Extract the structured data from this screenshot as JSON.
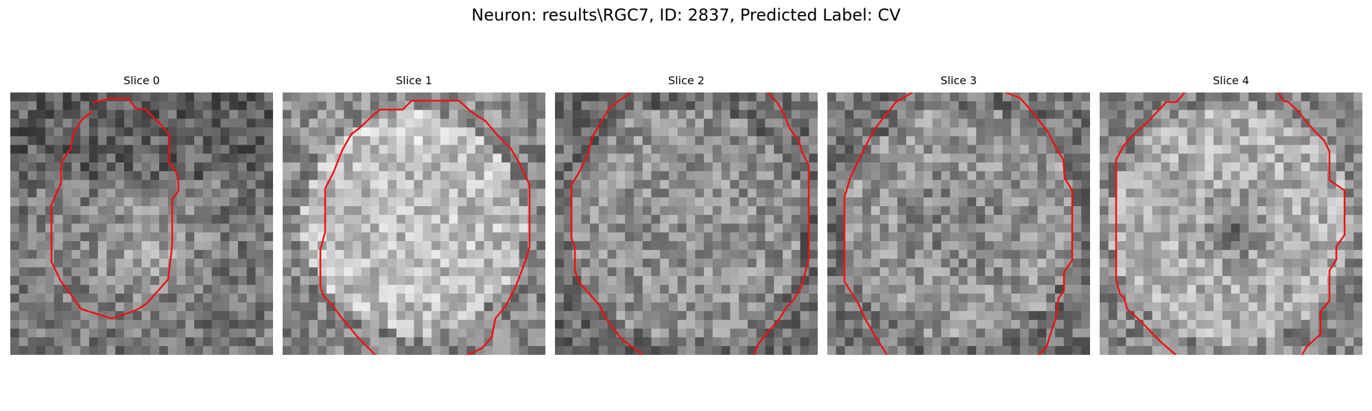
{
  "figure": {
    "title": "Neuron: results\\RGC7, ID: 2837, Predicted Label: CV"
  },
  "slices": [
    {
      "title": "Slice 0",
      "seed": 11,
      "pattern": "bright-lower",
      "base": 120
    },
    {
      "title": "Slice 1",
      "seed": 23,
      "pattern": "bright-disc",
      "base": 150
    },
    {
      "title": "Slice 2",
      "seed": 37,
      "pattern": "flat-disc",
      "base": 135
    },
    {
      "title": "Slice 3",
      "seed": 41,
      "pattern": "dim-center",
      "base": 135
    },
    {
      "title": "Slice 4",
      "seed": 53,
      "pattern": "dark-nucleus",
      "base": 145
    }
  ],
  "style": {
    "contour_color": "#ee1111",
    "grid_size": 30
  }
}
